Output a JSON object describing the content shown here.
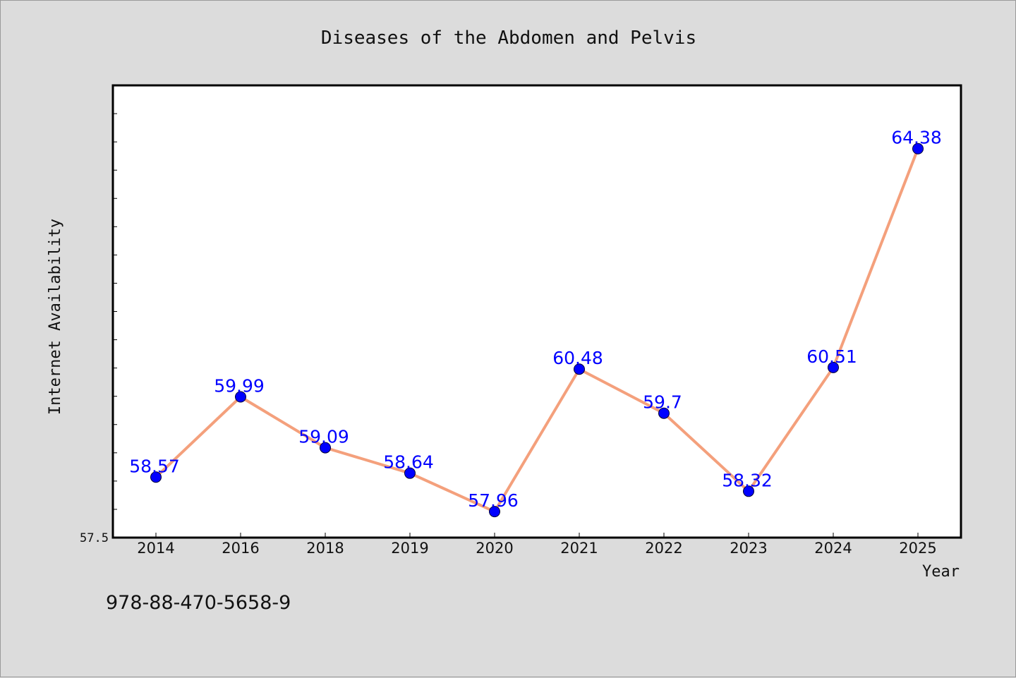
{
  "chart_data": {
    "type": "line",
    "title": "Diseases of the Abdomen and Pelvis",
    "xlabel": "Year",
    "ylabel": "Internet Availability",
    "categories": [
      "2014",
      "2016",
      "2018",
      "2019",
      "2020",
      "2021",
      "2022",
      "2023",
      "2024",
      "2025"
    ],
    "values": [
      58.57,
      59.99,
      59.09,
      58.64,
      57.96,
      60.48,
      59.7,
      58.32,
      60.51,
      64.38
    ],
    "data_labels": [
      "58.57",
      "59.99",
      "59.09",
      "58.64",
      "57.96",
      "60.48",
      "59.7",
      "58.32",
      "60.51",
      "64.38"
    ],
    "y_tick_labels": [
      "57.5"
    ],
    "ylim": [
      57.5,
      65.5
    ],
    "grid": false,
    "colors": {
      "line": "#f4a07c",
      "marker": "#0000ff",
      "labels": "#0000ff",
      "background": "#dcdcdc",
      "plot_background": "#ffffff"
    }
  },
  "footer": {
    "text": "978-88-470-5658-9"
  }
}
